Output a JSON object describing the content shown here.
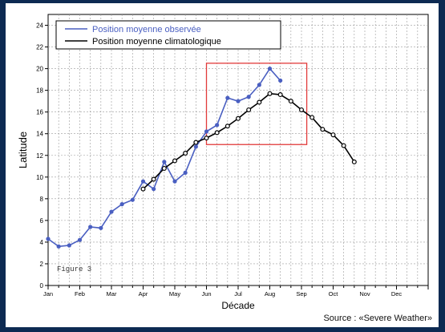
{
  "chart_data": {
    "type": "line",
    "xlabel": "Décade",
    "ylabel": "Latitude",
    "ylim": [
      0,
      25
    ],
    "xlim": [
      0,
      36
    ],
    "y_ticks": [
      0,
      2,
      4,
      6,
      8,
      10,
      12,
      14,
      16,
      18,
      20,
      22,
      24
    ],
    "x_tick_labels": [
      "Jan",
      "Feb",
      "Mar",
      "Apr",
      "May",
      "Jun",
      "Jul",
      "Aug",
      "Sep",
      "Oct",
      "Nov",
      "Dec"
    ],
    "grid": true,
    "legend_position": "top-left",
    "annotation": "Figure 3",
    "highlight_box": {
      "x": [
        15,
        24.5
      ],
      "y": [
        13.0,
        20.5
      ]
    },
    "series": [
      {
        "name": "Position moyenne observée",
        "color": "#4a5fc1",
        "x": [
          0,
          1,
          2,
          3,
          4,
          5,
          6,
          7,
          8,
          9,
          10,
          11,
          12,
          13,
          14,
          15,
          16,
          17,
          18,
          19,
          20,
          21,
          22
        ],
        "values": [
          4.3,
          3.6,
          3.7,
          4.2,
          5.4,
          5.3,
          6.8,
          7.5,
          7.9,
          9.6,
          8.9,
          11.4,
          9.6,
          10.4,
          12.8,
          14.2,
          14.8,
          17.3,
          17.0,
          17.4,
          18.5,
          20.0,
          18.9
        ]
      },
      {
        "name": "Position moyenne climatologique",
        "color": "#000000",
        "x": [
          9,
          10,
          11,
          12,
          13,
          14,
          15,
          16,
          17,
          18,
          19,
          20,
          21,
          22,
          23,
          24,
          25,
          26,
          27,
          28,
          29
        ],
        "values": [
          8.9,
          9.8,
          10.8,
          11.5,
          12.2,
          13.2,
          13.6,
          14.1,
          14.7,
          15.4,
          16.2,
          16.9,
          17.7,
          17.6,
          17.0,
          16.2,
          15.5,
          14.4,
          13.9,
          12.9,
          11.4
        ]
      }
    ]
  },
  "source_note": "Source : «Severe Weather»"
}
